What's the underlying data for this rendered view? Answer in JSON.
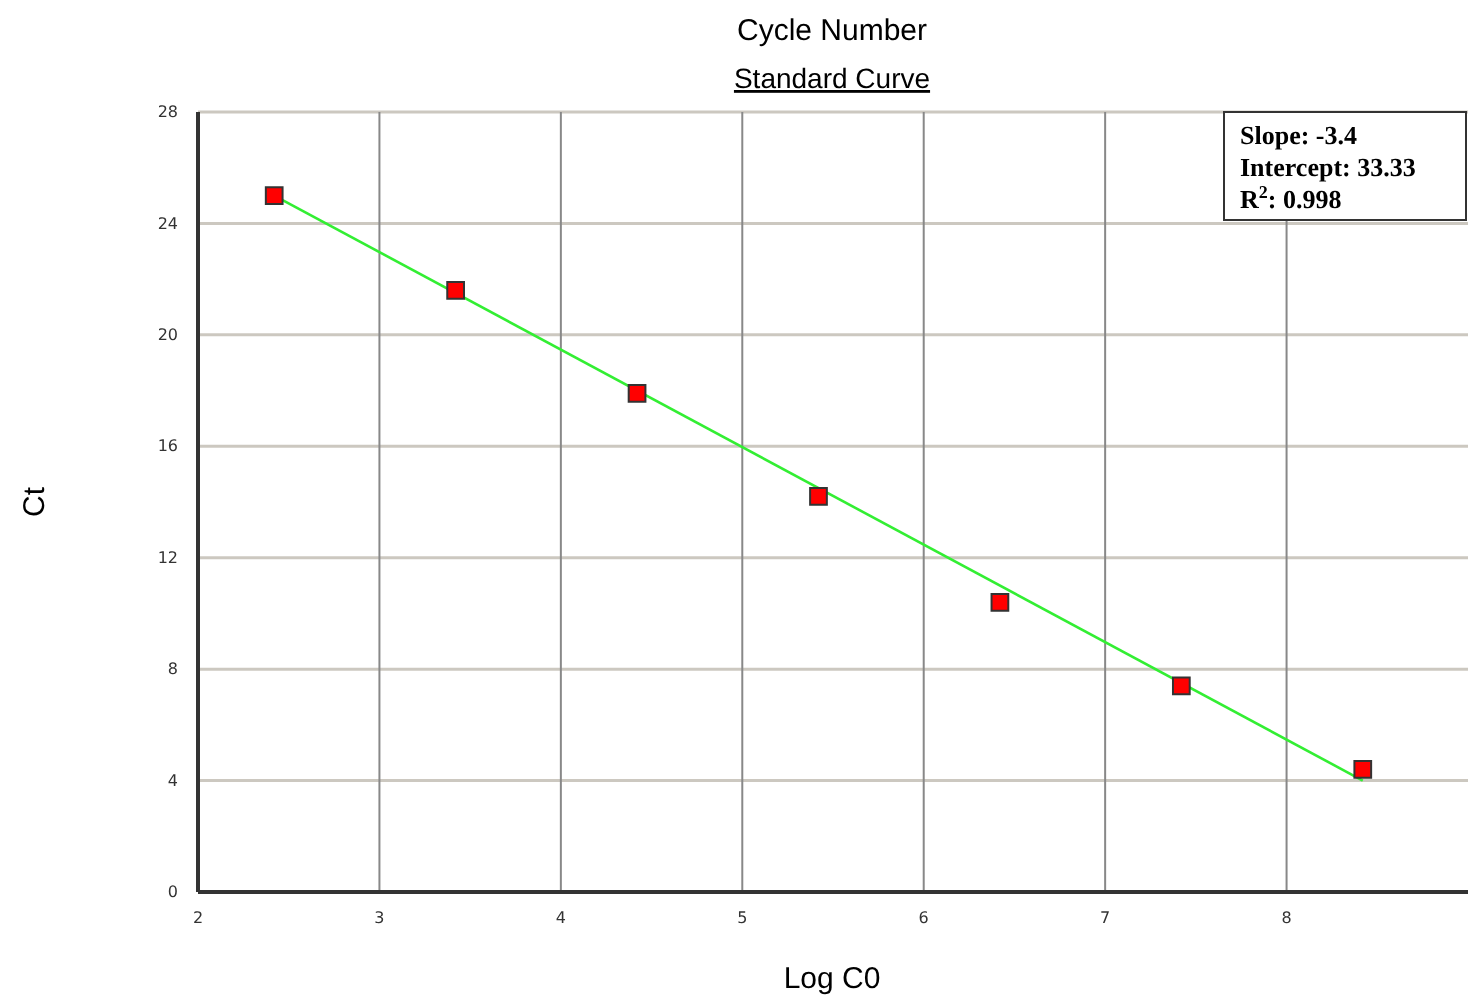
{
  "chart_data": {
    "type": "scatter",
    "title": "Cycle Number",
    "subtitle": "Standard Curve",
    "xlabel": "Log C0",
    "ylabel": "Ct",
    "x": [
      2.42,
      3.42,
      4.42,
      5.42,
      6.42,
      7.42,
      8.42
    ],
    "series": [
      {
        "color": "#ff0000",
        "marker": "square",
        "values": [
          25.0,
          21.6,
          17.9,
          14.2,
          10.4,
          7.4,
          4.4
        ]
      },
      {
        "type": "line",
        "color": "#33ee33",
        "marker": "none",
        "x": [
          2.42,
          8.42
        ],
        "values": [
          25.0,
          4.0
        ]
      }
    ],
    "xlim": [
      2,
      9
    ],
    "xticks": [
      2,
      3,
      4,
      5,
      6,
      7,
      8
    ],
    "ylim": [
      0,
      28
    ],
    "yticks": [
      0,
      4,
      8,
      12,
      16,
      20,
      24,
      28
    ],
    "grid": true,
    "annotations": [
      "Slope: -3.4",
      "Intercept: 33.33",
      "R$^{2}$: 0.998"
    ]
  }
}
